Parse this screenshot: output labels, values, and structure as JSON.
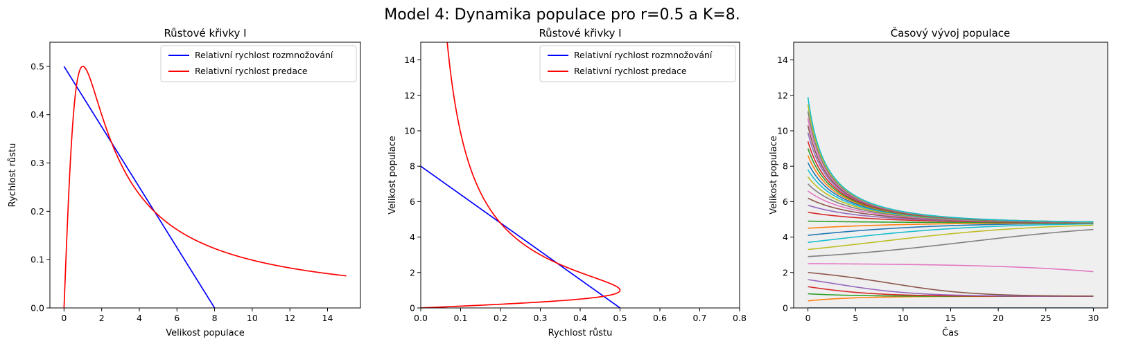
{
  "figure": {
    "suptitle": "Model 4: Dynamika populace pro r=0.5 a K=8."
  },
  "chart_data": [
    {
      "type": "line",
      "title": "Růstové křivky I",
      "xlabel": "Velikost populace",
      "ylabel": "Rychlost růstu",
      "xlim": [
        -0.75,
        15.75
      ],
      "ylim": [
        0,
        0.55
      ],
      "xticks": [
        0,
        2,
        4,
        6,
        8,
        10,
        12,
        14
      ],
      "yticks": [
        0.0,
        0.1,
        0.2,
        0.3,
        0.4,
        0.5
      ],
      "legend": "top-right",
      "series": [
        {
          "name": "Relativní rychlost rozmnožování",
          "color": "#0000ff",
          "function": "relative_growth",
          "x": [
            0,
            8
          ],
          "y": [
            0.5,
            0
          ]
        },
        {
          "name": "Relativní rychlost predace",
          "color": "#ff0000",
          "function": "relative_predation",
          "x": [
            0,
            0.25,
            0.5,
            0.75,
            1,
            1.5,
            2,
            3,
            4,
            5,
            6,
            8,
            10,
            12,
            15
          ],
          "y": [
            0,
            0.235,
            0.4,
            0.48,
            0.5,
            0.46,
            0.4,
            0.3,
            0.235,
            0.192,
            0.162,
            0.123,
            0.099,
            0.083,
            0.066
          ]
        }
      ]
    },
    {
      "type": "line",
      "title": "Růstové křivky I",
      "xlabel": "Rychlost růstu",
      "ylabel": "Velikost populace",
      "xlim": [
        0,
        0.8
      ],
      "ylim": [
        0,
        15
      ],
      "xticks": [
        0.0,
        0.1,
        0.2,
        0.3,
        0.4,
        0.5,
        0.6,
        0.7,
        0.8
      ],
      "yticks": [
        0,
        2,
        4,
        6,
        8,
        10,
        12,
        14
      ],
      "legend": "top-right",
      "series": [
        {
          "name": "Relativní rychlost rozmnožování",
          "color": "#0000ff",
          "function": "relative_growth",
          "x": [
            0.5,
            0
          ],
          "y": [
            0,
            8
          ]
        },
        {
          "name": "Relativní rychlost predace",
          "color": "#ff0000",
          "function": "relative_predation",
          "x": [
            0,
            0.235,
            0.4,
            0.48,
            0.5,
            0.46,
            0.4,
            0.3,
            0.235,
            0.192,
            0.162,
            0.123,
            0.099,
            0.083,
            0.066
          ],
          "y": [
            0,
            0.25,
            0.5,
            0.75,
            1,
            1.5,
            2,
            3,
            4,
            5,
            6,
            8,
            10,
            12,
            15
          ]
        }
      ]
    },
    {
      "type": "line",
      "title": "Časový vývoj populace",
      "xlabel": "Čas",
      "ylabel": "Velikost populace",
      "xlim": [
        -1.5,
        31.5
      ],
      "ylim": [
        0,
        15
      ],
      "xticks": [
        0,
        5,
        10,
        15,
        20,
        25,
        30
      ],
      "yticks": [
        0,
        2,
        4,
        6,
        8,
        10,
        12,
        14
      ],
      "background": "#efefef",
      "t_range": [
        0,
        30
      ],
      "model": {
        "r": 0.5,
        "K": 8
      },
      "initial_values": [
        0,
        0.4,
        0.8,
        1.2,
        1.6,
        2.0,
        2.5,
        2.9,
        3.3,
        3.7,
        4.1,
        4.5,
        4.9,
        5.4,
        5.8,
        6.2,
        6.6,
        7.0,
        7.4,
        7.8,
        8.2,
        8.6,
        9.0,
        9.4,
        9.9,
        10.3,
        10.7,
        11.1,
        11.5,
        11.9
      ],
      "colors": [
        "#1f77b4",
        "#ff7f0e",
        "#2ca02c",
        "#d62728",
        "#9467bd",
        "#8c564b",
        "#e377c2",
        "#7f7f7f",
        "#bcbd22",
        "#17becf"
      ]
    }
  ]
}
